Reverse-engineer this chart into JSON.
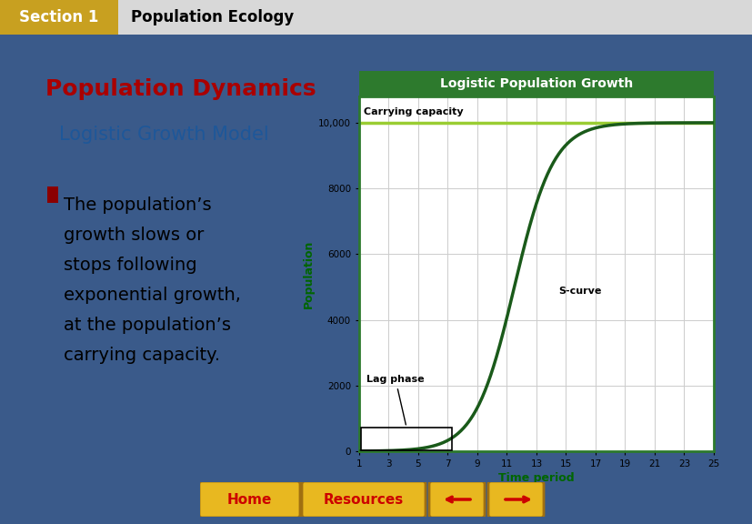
{
  "slide_bg": "#3a5a8a",
  "header_bg": "#c8a020",
  "header_text": "Section 1",
  "header_text_color": "#ffffff",
  "header_subtitle": "Population Ecology",
  "header_subtitle_color": "#000000",
  "content_bg": "#ffffff",
  "title_text": "Population Dynamics",
  "title_color": "#aa0000",
  "subtitle_text": "Logistic Growth Model",
  "subtitle_color": "#1e5799",
  "bullet_marker_color": "#8b0000",
  "bullet_color": "#000000",
  "chart_title": "Logistic Population Growth",
  "chart_title_bg": "#2d7a2d",
  "chart_title_color": "#ffffff",
  "chart_bg": "#ffffff",
  "chart_border_color": "#2d7a2d",
  "chart_line_color": "#1a5a1a",
  "chart_carrying_line_color": "#9acd32",
  "chart_xlabel": "Time period",
  "chart_xlabel_color": "#006600",
  "chart_ylabel": "Population",
  "chart_ylabel_color": "#006600",
  "chart_K": 10000,
  "chart_r": 0.75,
  "chart_t_mid": 11.5,
  "chart_xticks": [
    1,
    3,
    5,
    7,
    9,
    11,
    13,
    15,
    17,
    19,
    21,
    23,
    25
  ],
  "chart_yticks": [
    0,
    2000,
    4000,
    6000,
    8000,
    10000
  ],
  "chart_ytick_labels": [
    "0",
    "2000",
    "4000",
    "6000",
    "8000",
    "10,000"
  ],
  "annotation_carrying": "Carrying capacity",
  "annotation_scurve": "S-curve",
  "annotation_lag": "Lag phase",
  "grid_color": "#cccccc",
  "home_btn_color": "#e8b820",
  "home_text_color": "#cc0000",
  "resources_text_color": "#cc0000",
  "btn_border_color": "#a07010"
}
